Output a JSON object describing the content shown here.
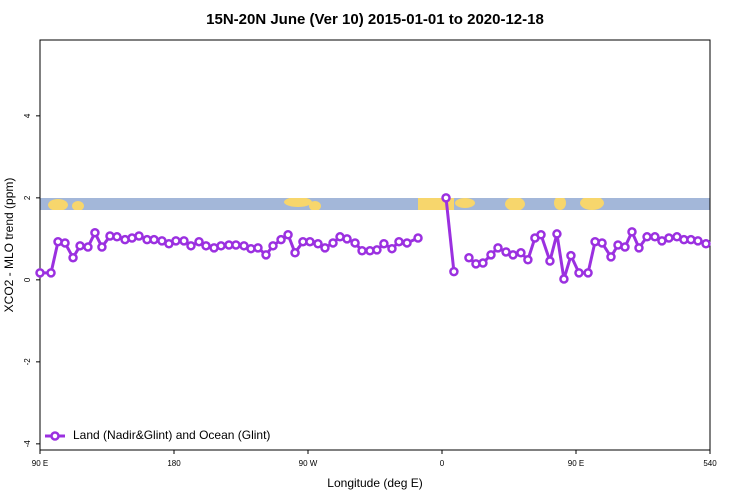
{
  "chart_data": {
    "type": "line",
    "title": "15N-20N June (Ver 10)   2015-01-01 to 2020-12-18",
    "xlabel": "Longitude (deg E)",
    "ylabel": "XCO2 - MLO trend (ppm)",
    "xlim": [
      90,
      540
    ],
    "xticks": [
      {
        "value": 90,
        "label": "90 E"
      },
      180,
      {
        "value": 270,
        "label": "90 W"
      },
      {
        "value": 360,
        "label": "0"
      },
      {
        "value": 450,
        "label": "90 E"
      },
      540
    ],
    "ylim": [
      -4.15,
      5.85
    ],
    "yticks": [
      -4,
      -2,
      0,
      2,
      4
    ],
    "legend": "bottom-left",
    "series": [
      {
        "name": "Land (Nadir&Glint) and Ocean (Glint)",
        "color": "#9b30e0",
        "x": [
          90,
          97.4,
          102.1,
          106.8,
          112.2,
          116.9,
          122.2,
          126.9,
          131.6,
          137,
          141.7,
          147.1,
          151.8,
          156.5,
          161.9,
          166.6,
          171.9,
          176.6,
          181.3,
          186.7,
          191.4,
          196.8,
          201.5,
          206.9,
          211.6,
          216.9,
          221.6,
          227,
          231.7,
          236.4,
          241.8,
          246.5,
          251.9,
          256.6,
          261.3,
          266.6,
          271.3,
          276.7,
          281.4,
          286.8,
          291.5,
          296.2,
          301.6,
          306.3,
          311.6,
          316.3,
          321,
          326.4,
          331.1,
          336.5,
          343.9,
          352,
          362.7,
          368,
          372.7,
          378.1,
          382.8,
          387.5,
          392.9,
          397.6,
          403,
          407.7,
          413,
          417.7,
          422.4,
          426.5,
          432.5,
          437.2,
          441.9,
          446.6,
          452,
          458.1,
          462.8,
          467.5,
          473.5,
          478.2,
          482.9,
          487.6,
          492.3,
          497.7,
          503,
          507.7,
          512.4,
          517.8,
          522.5,
          527.2,
          531.9,
          537.3
        ],
        "values": [
          0.17,
          0.17,
          0.93,
          0.9,
          0.54,
          0.83,
          0.8,
          1.15,
          0.8,
          1.07,
          1.05,
          0.98,
          1.02,
          1.07,
          0.98,
          0.98,
          0.95,
          0.88,
          0.95,
          0.95,
          0.83,
          0.93,
          0.83,
          0.78,
          0.83,
          0.85,
          0.85,
          0.83,
          0.76,
          0.78,
          0.61,
          0.83,
          0.98,
          1.1,
          0.66,
          0.93,
          0.93,
          0.88,
          0.78,
          0.9,
          1.05,
          1.0,
          0.9,
          0.71,
          0.71,
          0.73,
          0.88,
          0.76,
          0.93,
          0.9,
          1.02,
          null,
          2.0,
          0.2,
          null,
          0.54,
          0.39,
          0.41,
          0.61,
          0.78,
          0.68,
          0.61,
          0.66,
          0.49,
          1.02,
          1.1,
          0.46,
          1.12,
          0.02,
          0.59,
          0.17,
          0.17,
          0.93,
          0.9,
          0.56,
          0.85,
          0.8,
          1.17,
          0.78,
          1.05,
          1.05,
          0.95,
          1.02,
          1.05,
          0.98,
          0.98,
          0.95,
          0.88
        ]
      }
    ]
  }
}
